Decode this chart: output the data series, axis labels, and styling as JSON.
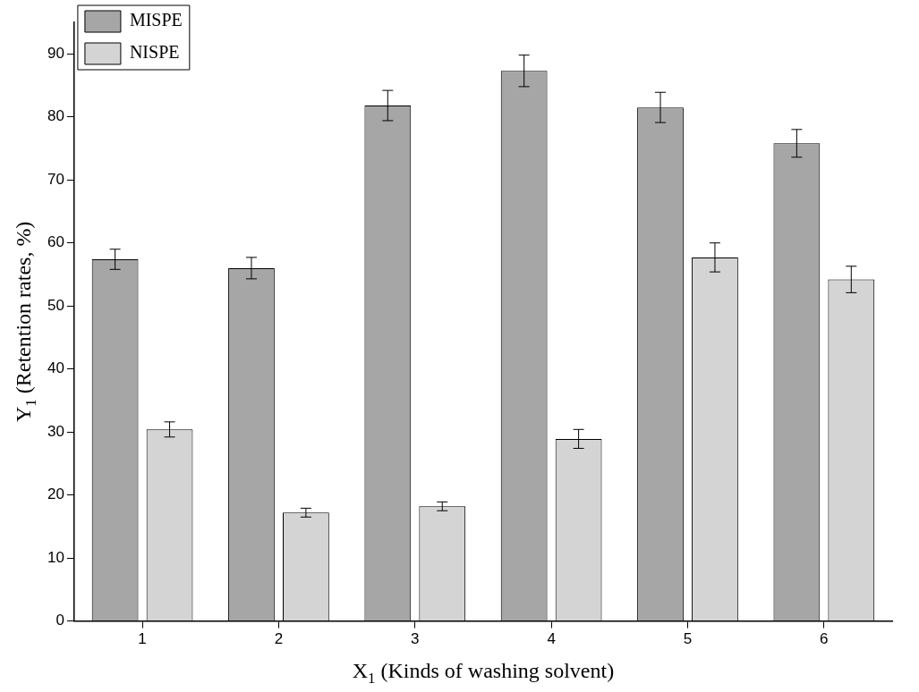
{
  "chart_data": {
    "type": "bar",
    "xlabel": "X$_{1}$ (Kinds of washing solvent)",
    "ylabel": "Y$_{1}$ (Retention rates, %)",
    "categories": [
      "1",
      "2",
      "3",
      "4",
      "5",
      "6"
    ],
    "series": [
      {
        "name": "MISPE",
        "color": "#a6a6a6",
        "values": [
          57.4,
          56.0,
          81.8,
          87.3,
          81.5,
          75.8
        ],
        "errors": [
          1.6,
          1.7,
          2.4,
          2.5,
          2.4,
          2.2
        ]
      },
      {
        "name": "NISPE",
        "color": "#d4d4d4",
        "values": [
          30.4,
          17.2,
          18.2,
          28.9,
          57.7,
          54.2
        ],
        "errors": [
          1.2,
          0.7,
          0.7,
          1.5,
          2.3,
          2.1
        ]
      }
    ],
    "ylim": [
      0,
      95
    ],
    "yticks": [
      0,
      10,
      20,
      30,
      40,
      50,
      60,
      70,
      80,
      90
    ],
    "grid": false,
    "legend": "top left"
  }
}
